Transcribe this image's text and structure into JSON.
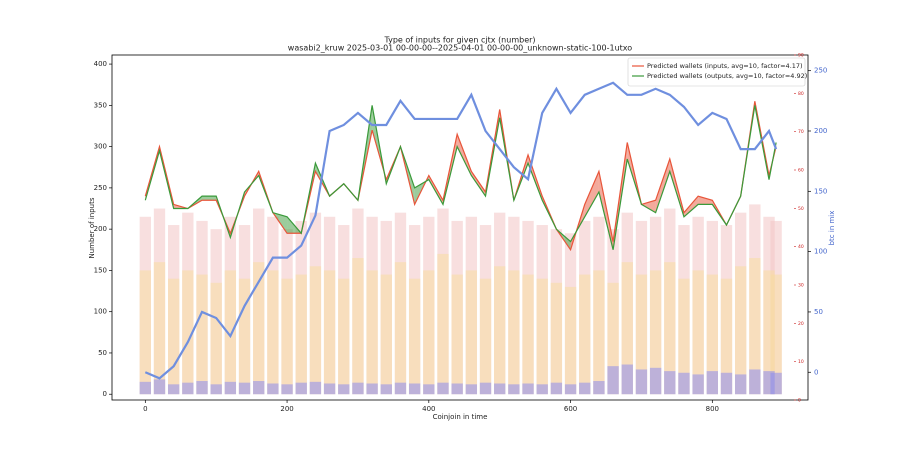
{
  "chart_data": {
    "type": "line",
    "title": "Type of inputs for given cjtx (number)",
    "subtitle": "wasabi2_kruw 2025-03-01 00-00-00--2025-04-01 00-00-00_unknown-static-100-1utxo",
    "x_label": "Coinjoin in time",
    "y_label": "Number of inputs",
    "y2_label": "btc in mix",
    "y2_color": "#4466cc",
    "y3_color": "#cc2222",
    "xlim": [
      -47,
      935
    ],
    "xticks": [
      0,
      200,
      400,
      600,
      800
    ],
    "ylim": [
      -7,
      411
    ],
    "yticks": [
      0,
      50,
      100,
      150,
      200,
      250,
      300,
      350,
      400
    ],
    "y2lim": [
      -23,
      263
    ],
    "y2ticks": [
      0,
      50,
      100,
      150,
      200,
      250
    ],
    "y3lim": [
      0,
      90
    ],
    "y3ticks": [
      0,
      10,
      20,
      30,
      40,
      50,
      60,
      70,
      80,
      90
    ],
    "legend": "upper right",
    "x": [
      0,
      20,
      40,
      60,
      80,
      100,
      120,
      140,
      160,
      180,
      200,
      220,
      240,
      260,
      280,
      300,
      320,
      340,
      360,
      380,
      400,
      420,
      440,
      460,
      480,
      500,
      520,
      540,
      560,
      580,
      600,
      620,
      640,
      660,
      680,
      700,
      720,
      740,
      760,
      780,
      800,
      820,
      840,
      860,
      880,
      890
    ],
    "series": [
      {
        "name": "Predicted wallets (inputs, avg=10, factor=4.17)",
        "color": "#e8553a",
        "values": [
          240,
          300,
          230,
          225,
          235,
          235,
          195,
          240,
          270,
          220,
          195,
          195,
          270,
          240,
          255,
          235,
          320,
          260,
          300,
          230,
          265,
          235,
          315,
          270,
          245,
          345,
          235,
          290,
          240,
          200,
          175,
          230,
          270,
          185,
          305,
          230,
          235,
          285,
          220,
          240,
          235,
          205,
          240,
          355,
          265,
          300
        ]
      },
      {
        "name": "Predicted wallets (outputs, avg=10, factor=4.92)",
        "color": "#3a9a3a",
        "values": [
          235,
          295,
          225,
          225,
          240,
          240,
          190,
          245,
          265,
          220,
          215,
          195,
          280,
          240,
          255,
          235,
          350,
          255,
          300,
          250,
          260,
          230,
          300,
          265,
          240,
          335,
          235,
          280,
          235,
          200,
          185,
          215,
          245,
          175,
          285,
          230,
          220,
          270,
          215,
          230,
          230,
          205,
          240,
          350,
          260,
          305
        ]
      },
      {
        "color": "#6f8fdf",
        "axis": "y2",
        "values": [
          0,
          -5,
          5,
          25,
          50,
          45,
          30,
          55,
          75,
          95,
          95,
          105,
          130,
          200,
          205,
          215,
          205,
          205,
          225,
          210,
          210,
          210,
          210,
          230,
          200,
          185,
          170,
          160,
          215,
          235,
          215,
          230,
          235,
          240,
          230,
          230,
          235,
          230,
          220,
          205,
          215,
          210,
          185,
          185,
          200,
          185
        ]
      }
    ],
    "bars": [
      {
        "color": "#f2c4c4",
        "values": [
          215,
          225,
          205,
          220,
          210,
          200,
          215,
          205,
          225,
          215,
          200,
          210,
          220,
          215,
          205,
          225,
          215,
          210,
          220,
          205,
          215,
          225,
          210,
          215,
          205,
          220,
          215,
          210,
          205,
          200,
          195,
          210,
          215,
          200,
          220,
          210,
          215,
          225,
          205,
          215,
          210,
          205,
          220,
          230,
          215,
          210
        ]
      },
      {
        "color": "#f8dca0",
        "values": [
          150,
          160,
          140,
          150,
          145,
          135,
          150,
          140,
          160,
          150,
          140,
          145,
          155,
          150,
          140,
          165,
          150,
          145,
          160,
          140,
          150,
          170,
          145,
          150,
          140,
          155,
          150,
          145,
          140,
          135,
          130,
          145,
          150,
          135,
          160,
          145,
          150,
          160,
          140,
          150,
          145,
          140,
          155,
          165,
          150,
          145
        ]
      },
      {
        "color": "#8c8cf0",
        "values": [
          15,
          18,
          12,
          14,
          16,
          12,
          15,
          14,
          16,
          13,
          12,
          14,
          15,
          13,
          12,
          14,
          13,
          12,
          14,
          13,
          12,
          14,
          13,
          12,
          14,
          13,
          12,
          13,
          12,
          14,
          12,
          14,
          16,
          34,
          36,
          30,
          32,
          28,
          26,
          24,
          28,
          26,
          24,
          30,
          28,
          26
        ]
      }
    ]
  }
}
